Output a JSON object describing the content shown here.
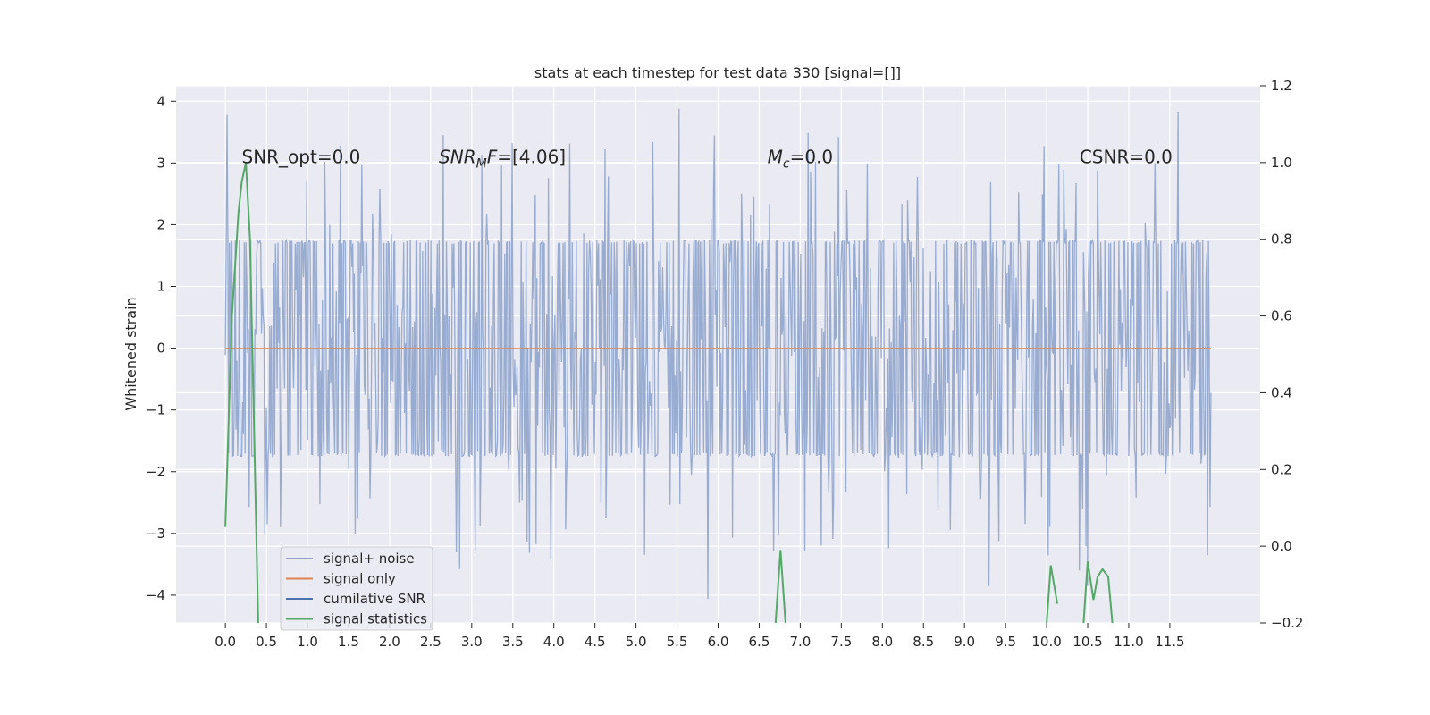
{
  "chart_data": {
    "type": "line",
    "title": "stats at each timestep for test data 330 [signal=[]]",
    "xlabel": "",
    "ylabel": "Whitened strain",
    "xlim": [
      -0.6,
      12.6
    ],
    "ylim": [
      -4.45,
      4.25
    ],
    "y2lim": [
      -0.2,
      1.2
    ],
    "xticks": [
      "0.0",
      "0.5",
      "1.0",
      "1.5",
      "2.0",
      "2.5",
      "3.0",
      "3.5",
      "4.0",
      "4.5",
      "5.0",
      "5.5",
      "6.0",
      "6.5",
      "7.0",
      "7.5",
      "8.0",
      "8.5",
      "9.0",
      "9.5",
      "10.0",
      "10.5",
      "11.0",
      "11.5"
    ],
    "xtick_values": [
      0.0,
      0.5,
      1.0,
      1.5,
      2.0,
      2.5,
      3.0,
      3.5,
      4.0,
      4.5,
      5.0,
      5.5,
      6.0,
      6.5,
      7.0,
      7.5,
      8.0,
      8.5,
      9.0,
      9.5,
      10.0,
      10.5,
      11.0,
      11.5
    ],
    "yticks": [
      "4",
      "3",
      "2",
      "1",
      "0",
      "−1",
      "−2",
      "−3",
      "−4"
    ],
    "ytick_values": [
      4,
      3,
      2,
      1,
      0,
      -1,
      -2,
      -3,
      -4
    ],
    "y2ticks": [
      "1.2",
      "1.0",
      "0.8",
      "0.6",
      "0.4",
      "0.2",
      "0.0",
      "−0.2"
    ],
    "y2tick_values": [
      1.2,
      1.0,
      0.8,
      0.6,
      0.4,
      0.2,
      0.0,
      -0.2
    ],
    "grid": true,
    "legend_position": "lower-left",
    "annotations": [
      {
        "parts": [
          {
            "t": "SNR_opt=0.0",
            "italic": false
          }
        ],
        "x": 0.2,
        "y": 3.0
      },
      {
        "parts": [
          {
            "t": "SNR",
            "italic": true
          },
          {
            "t": "M",
            "italic": true,
            "sub": true
          },
          {
            "t": "F",
            "italic": true
          },
          {
            "t": "=[4.06]",
            "italic": false
          }
        ],
        "x": 2.6,
        "y": 3.0
      },
      {
        "parts": [
          {
            "t": "M",
            "italic": true
          },
          {
            "t": "c",
            "italic": true,
            "sub": true
          },
          {
            "t": "=0.0",
            "italic": false
          }
        ],
        "x": 6.6,
        "y": 3.0
      },
      {
        "parts": [
          {
            "t": "CSNR=0.0",
            "italic": false
          }
        ],
        "x": 10.4,
        "y": 3.0
      }
    ],
    "series": [
      {
        "name": "signal+ noise",
        "color": "#8fa4cc",
        "axis": "left",
        "x_range": [
          0.0,
          12.0
        ],
        "sample_count": 1200,
        "typical_range": [
          -1.75,
          1.75
        ],
        "envelope_range": [
          -4.1,
          3.9
        ],
        "notable_peaks": [
          [
            0.02,
            3.78
          ],
          [
            5.52,
            3.88
          ],
          [
            11.6,
            3.83
          ],
          [
            5.87,
            -4.06
          ],
          [
            2.85,
            -3.58
          ],
          [
            9.3,
            -3.85
          ],
          [
            10.5,
            -3.85
          ],
          [
            10.4,
            -3.6
          ]
        ]
      },
      {
        "name": "signal only",
        "color": "#dd8452",
        "axis": "left",
        "x": [
          0.0,
          12.0
        ],
        "y": [
          0.0,
          0.0
        ]
      },
      {
        "name": "cumilative SNR",
        "color": "#4c72b0",
        "axis": "right",
        "x": [],
        "y": []
      },
      {
        "name": "signal statistics",
        "color": "#55a868",
        "axis": "right",
        "segments": [
          {
            "x": [
              0.0,
              0.08,
              0.16,
              0.2,
              0.25,
              0.3,
              0.35,
              0.4
            ],
            "y": [
              0.05,
              0.6,
              0.87,
              0.95,
              1.0,
              0.8,
              0.3,
              -0.2
            ]
          },
          {
            "x": [
              6.7,
              6.76,
              6.82
            ],
            "y": [
              -0.2,
              -0.01,
              -0.2
            ]
          },
          {
            "x": [
              10.0,
              10.05,
              10.13
            ],
            "y": [
              -0.2,
              -0.05,
              -0.15
            ]
          },
          {
            "x": [
              10.45,
              10.5,
              10.57,
              10.62,
              10.68,
              10.75,
              10.8
            ],
            "y": [
              -0.2,
              -0.04,
              -0.14,
              -0.08,
              -0.06,
              -0.08,
              -0.2
            ]
          }
        ]
      }
    ]
  }
}
